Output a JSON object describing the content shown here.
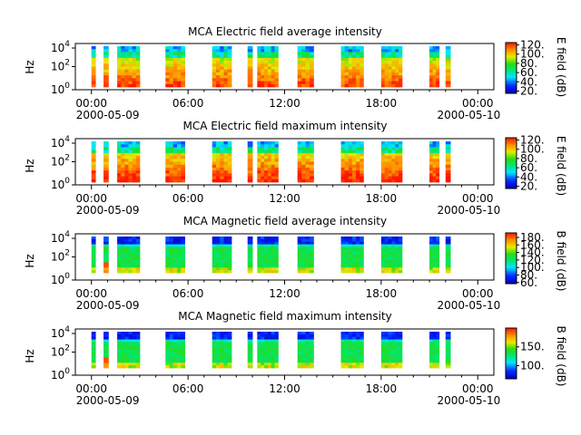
{
  "chart_data": [
    {
      "type": "heatmap",
      "title": "MCA  Electric field average intensity",
      "ylabel": "Hz",
      "colorbar_label": "E field (dB)",
      "y_scale": "log",
      "y_ticks": [
        "0",
        "2",
        "4"
      ],
      "colorbar_ticks": [
        "20.",
        "40.",
        "60.",
        "80.",
        "100.",
        "120."
      ],
      "colorbar_range": [
        15,
        125
      ],
      "palette": "rainbow",
      "field": "electric"
    },
    {
      "type": "heatmap",
      "title": "MCA  Electric field maximum intensity",
      "ylabel": "Hz",
      "colorbar_label": "E field (dB)",
      "y_scale": "log",
      "y_ticks": [
        "0",
        "2",
        "4"
      ],
      "colorbar_ticks": [
        "20.",
        "40.",
        "60.",
        "80.",
        "100.",
        "120."
      ],
      "colorbar_range": [
        15,
        125
      ],
      "palette": "rainbow",
      "field": "electric"
    },
    {
      "type": "heatmap",
      "title": "MCA  Magnetic field average intensity",
      "ylabel": "Hz",
      "colorbar_label": "B field (dB)",
      "y_scale": "log",
      "y_ticks": [
        "0",
        "2",
        "4"
      ],
      "colorbar_ticks": [
        "60.",
        "80.",
        "100.",
        "120.",
        "140.",
        "160.",
        "180."
      ],
      "colorbar_range": [
        57,
        192
      ],
      "palette": "rainbow",
      "field": "magnetic"
    },
    {
      "type": "heatmap",
      "title": "MCA  Magnetic field maximum intensity",
      "ylabel": "Hz",
      "colorbar_label": "B field (dB)",
      "y_scale": "log",
      "y_ticks": [
        "0",
        "2",
        "4"
      ],
      "colorbar_ticks": [
        "100.",
        "150."
      ],
      "colorbar_range": [
        65,
        200
      ],
      "palette": "rainbow",
      "field": "magnetic"
    }
  ],
  "x_axis": {
    "tick_labels": [
      "00:00",
      "06:00",
      "12:00",
      "18:00",
      "00:00"
    ],
    "date_labels": [
      "2000-05-09",
      "2000-05-10"
    ],
    "range_hours": [
      -1,
      25
    ]
  },
  "data_segments_hours": [
    [
      0.0,
      0.25
    ],
    [
      0.75,
      1.05
    ],
    [
      1.6,
      3.0
    ],
    [
      4.6,
      5.8
    ],
    [
      7.5,
      8.7
    ],
    [
      9.7,
      10.0
    ],
    [
      10.3,
      11.6
    ],
    [
      12.8,
      13.8
    ],
    [
      15.5,
      16.9
    ],
    [
      18.0,
      19.3
    ],
    [
      21.0,
      21.6
    ],
    [
      22.0,
      22.3
    ]
  ],
  "colors": {
    "axes": "#000000",
    "background": "#ffffff"
  }
}
